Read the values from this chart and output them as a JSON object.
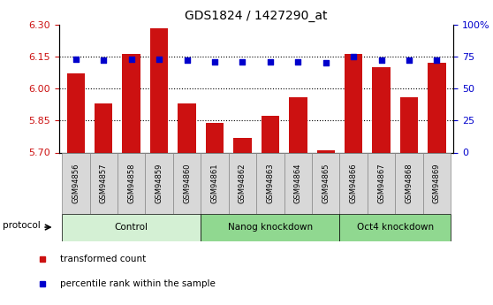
{
  "title": "GDS1824 / 1427290_at",
  "samples": [
    "GSM94856",
    "GSM94857",
    "GSM94858",
    "GSM94859",
    "GSM94860",
    "GSM94861",
    "GSM94862",
    "GSM94863",
    "GSM94864",
    "GSM94865",
    "GSM94866",
    "GSM94867",
    "GSM94868",
    "GSM94869"
  ],
  "transformed_count": [
    6.07,
    5.93,
    6.16,
    6.28,
    5.93,
    5.84,
    5.77,
    5.87,
    5.96,
    5.71,
    6.16,
    6.1,
    5.96,
    6.12
  ],
  "percentile_rank": [
    73,
    72,
    73,
    73,
    72,
    71,
    71,
    71,
    71,
    70,
    75,
    72,
    72,
    72
  ],
  "ylim_left": [
    5.7,
    6.3
  ],
  "ylim_right": [
    0,
    100
  ],
  "yticks_left": [
    5.7,
    5.85,
    6.0,
    6.15,
    6.3
  ],
  "yticks_right": [
    0,
    25,
    50,
    75,
    100
  ],
  "ytick_labels_right": [
    "0",
    "25",
    "50",
    "75",
    "100%"
  ],
  "bar_color": "#cc1111",
  "dot_color": "#0000cc",
  "bar_width": 0.65,
  "baseline": 5.7,
  "tick_label_color_left": "#cc1111",
  "tick_label_color_right": "#0000cc",
  "gridlines": [
    5.85,
    6.0,
    6.15
  ],
  "groups": [
    {
      "label": "Control",
      "start": 0,
      "end": 5,
      "color": "#d4f0d4"
    },
    {
      "label": "Nanog knockdown",
      "start": 5,
      "end": 10,
      "color": "#90d890"
    },
    {
      "label": "Oct4 knockdown",
      "start": 10,
      "end": 14,
      "color": "#90d890"
    }
  ],
  "protocol_label": "protocol",
  "legend_items": [
    {
      "color": "#cc1111",
      "label": "transformed count"
    },
    {
      "color": "#0000cc",
      "label": "percentile rank within the sample"
    }
  ],
  "xtick_bg_color": "#d8d8d8",
  "xtick_border_color": "#888888"
}
